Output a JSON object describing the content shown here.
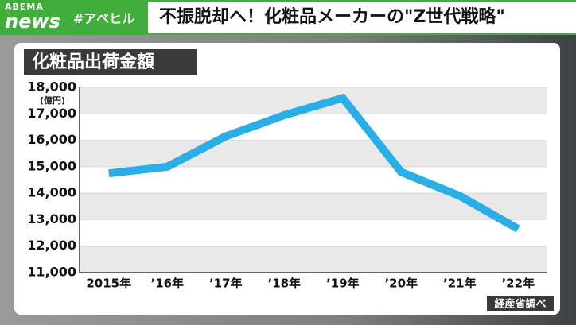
{
  "header": {
    "logo_top": "ABEMA",
    "logo_bottom": "news",
    "tag": "#アベヒル",
    "title": "不振脱却へ！化粧品メーカーの\"Z世代戦略\""
  },
  "chart_data": {
    "type": "line",
    "title": "化粧品出荷金額",
    "y_unit": "(億円)",
    "source": "経産省調べ",
    "categories": [
      "2015年",
      "’16年",
      "’17年",
      "’18年",
      "’19年",
      "’20年",
      "’21年",
      "’22年"
    ],
    "values": [
      14750,
      15000,
      16150,
      16950,
      17600,
      14800,
      13900,
      12650
    ],
    "color": "#29aee6",
    "ylim": [
      11000,
      18000
    ],
    "yticks": [
      {
        "value": 11000,
        "label": "11,000"
      },
      {
        "value": 12000,
        "label": "12,000"
      },
      {
        "value": 13000,
        "label": "13,000"
      },
      {
        "value": 14000,
        "label": "14,000"
      },
      {
        "value": 15000,
        "label": "15,000"
      },
      {
        "value": 16000,
        "label": "16,000"
      },
      {
        "value": 17000,
        "label": "17,000"
      },
      {
        "value": 18000,
        "label": "18,000"
      }
    ],
    "grid": true
  }
}
